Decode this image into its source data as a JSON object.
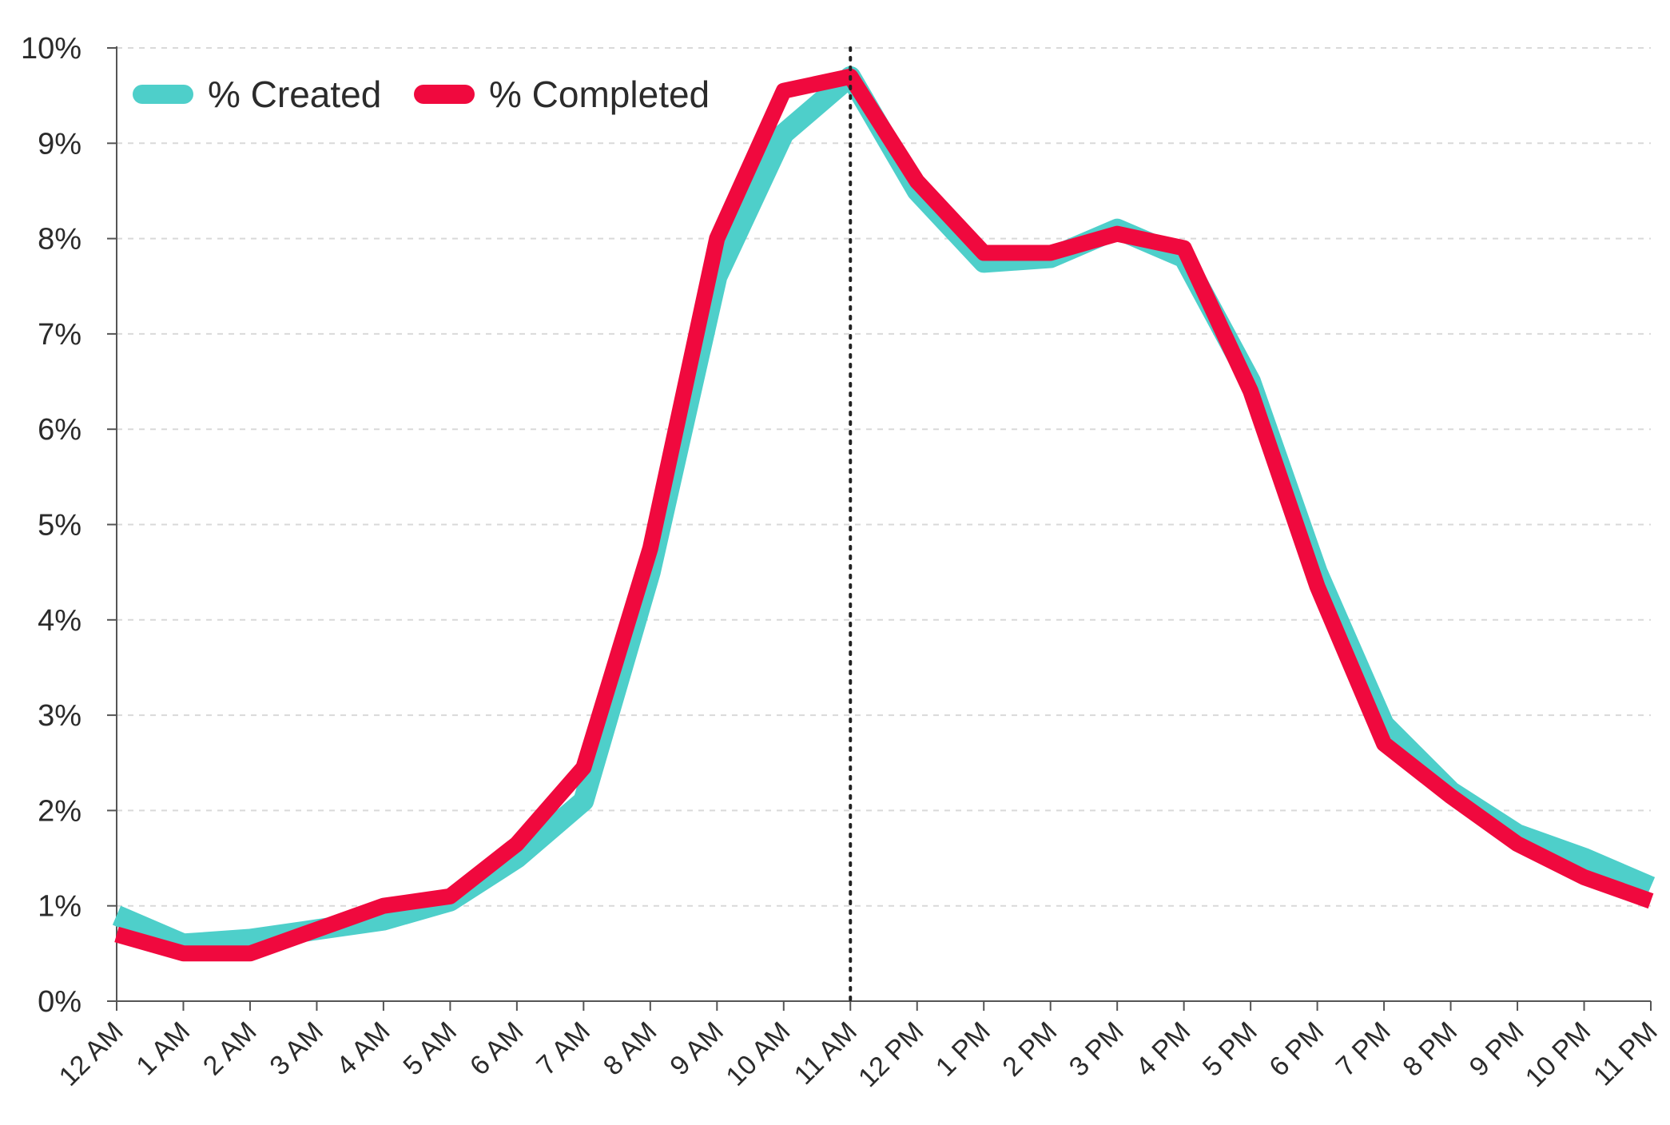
{
  "chart_data": {
    "type": "line",
    "title": "",
    "xlabel": "",
    "ylabel": "",
    "ylim": [
      0,
      10
    ],
    "yticks": [
      0,
      1,
      2,
      3,
      4,
      5,
      6,
      7,
      8,
      9,
      10
    ],
    "ytick_labels": [
      "0%",
      "1%",
      "2%",
      "3%",
      "4%",
      "5%",
      "6%",
      "7%",
      "8%",
      "9%",
      "10%"
    ],
    "categories": [
      "12 AM",
      "1 AM",
      "2 AM",
      "3 AM",
      "4 AM",
      "5 AM",
      "6 AM",
      "7 AM",
      "8 AM",
      "9 AM",
      "10 AM",
      "11 AM",
      "12 PM",
      "1 PM",
      "2 PM",
      "3 PM",
      "4 PM",
      "5 PM",
      "6 PM",
      "7 PM",
      "8 PM",
      "9 PM",
      "10 PM",
      "11 PM"
    ],
    "grid": "horizontal-dashed",
    "legend_position": "top-left",
    "vertical_marker": {
      "category": "11 AM",
      "style": "dotted"
    },
    "series": [
      {
        "name": "% Created",
        "color": "#4ecfca",
        "values": [
          0.9,
          0.6,
          0.65,
          0.75,
          0.85,
          1.05,
          1.5,
          2.1,
          4.5,
          7.6,
          9.1,
          9.7,
          8.5,
          7.75,
          7.8,
          8.1,
          7.8,
          6.5,
          4.5,
          2.9,
          2.2,
          1.75,
          1.5,
          1.2
        ]
      },
      {
        "name": "% Completed",
        "color": "#f0093e",
        "values": [
          0.7,
          0.5,
          0.5,
          0.75,
          1.0,
          1.1,
          1.65,
          2.45,
          4.75,
          8.0,
          9.55,
          9.7,
          8.6,
          7.85,
          7.85,
          8.05,
          7.9,
          6.4,
          4.35,
          2.7,
          2.15,
          1.65,
          1.3,
          1.05
        ]
      }
    ]
  }
}
